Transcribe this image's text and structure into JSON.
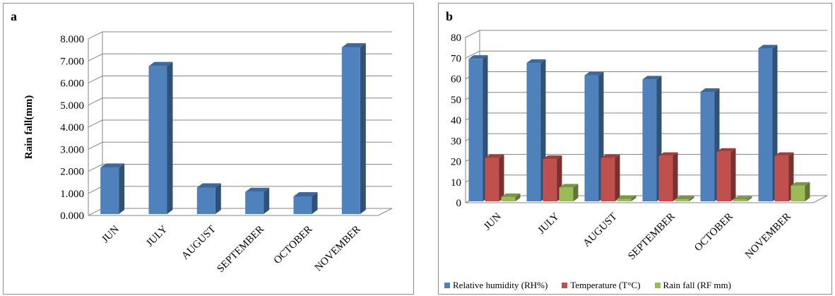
{
  "panel_a": {
    "label": "a"
  },
  "panel_b": {
    "label": "b"
  },
  "chart_data": [
    {
      "type": "bar",
      "categories": [
        "JUN",
        "JULY",
        "AUGUST",
        "SEPTEMBER",
        "OCTOBER",
        "NOVEMBER"
      ],
      "series": [
        {
          "values": [
            2.1,
            6.7,
            1.2,
            1.0,
            0.8,
            7.55
          ]
        }
      ],
      "ylabel": "Rain fall(mm)",
      "ylim": [
        0,
        8
      ],
      "yticks": [
        "0.000",
        "1.000",
        "2.000",
        "3.000",
        "4.000",
        "5.000",
        "6.000",
        "7.000",
        "8.000"
      ],
      "colors": [
        "#4f81bd"
      ],
      "grid": true
    },
    {
      "type": "bar",
      "categories": [
        "JUN",
        "JULY",
        "AUGUST",
        "SEPTEMBER",
        "OCTOBER",
        "NOVEMBER"
      ],
      "series": [
        {
          "name": "Relative humidity (RH%)",
          "values": [
            69,
            67,
            61,
            59,
            53,
            74
          ]
        },
        {
          "name": "Temperature (T°C)",
          "values": [
            21,
            20.5,
            21,
            22,
            24,
            22
          ]
        },
        {
          "name": "Rain fall (RF mm)",
          "values": [
            2.1,
            6.7,
            1.2,
            1.0,
            0.8,
            7.55
          ]
        }
      ],
      "ylim": [
        0,
        80
      ],
      "yticks": [
        "0",
        "10",
        "20",
        "30",
        "40",
        "50",
        "60",
        "70",
        "80"
      ],
      "colors": [
        "#4f81bd",
        "#c0504d",
        "#9bbb59"
      ],
      "legend": "bottom",
      "grid": true
    }
  ]
}
